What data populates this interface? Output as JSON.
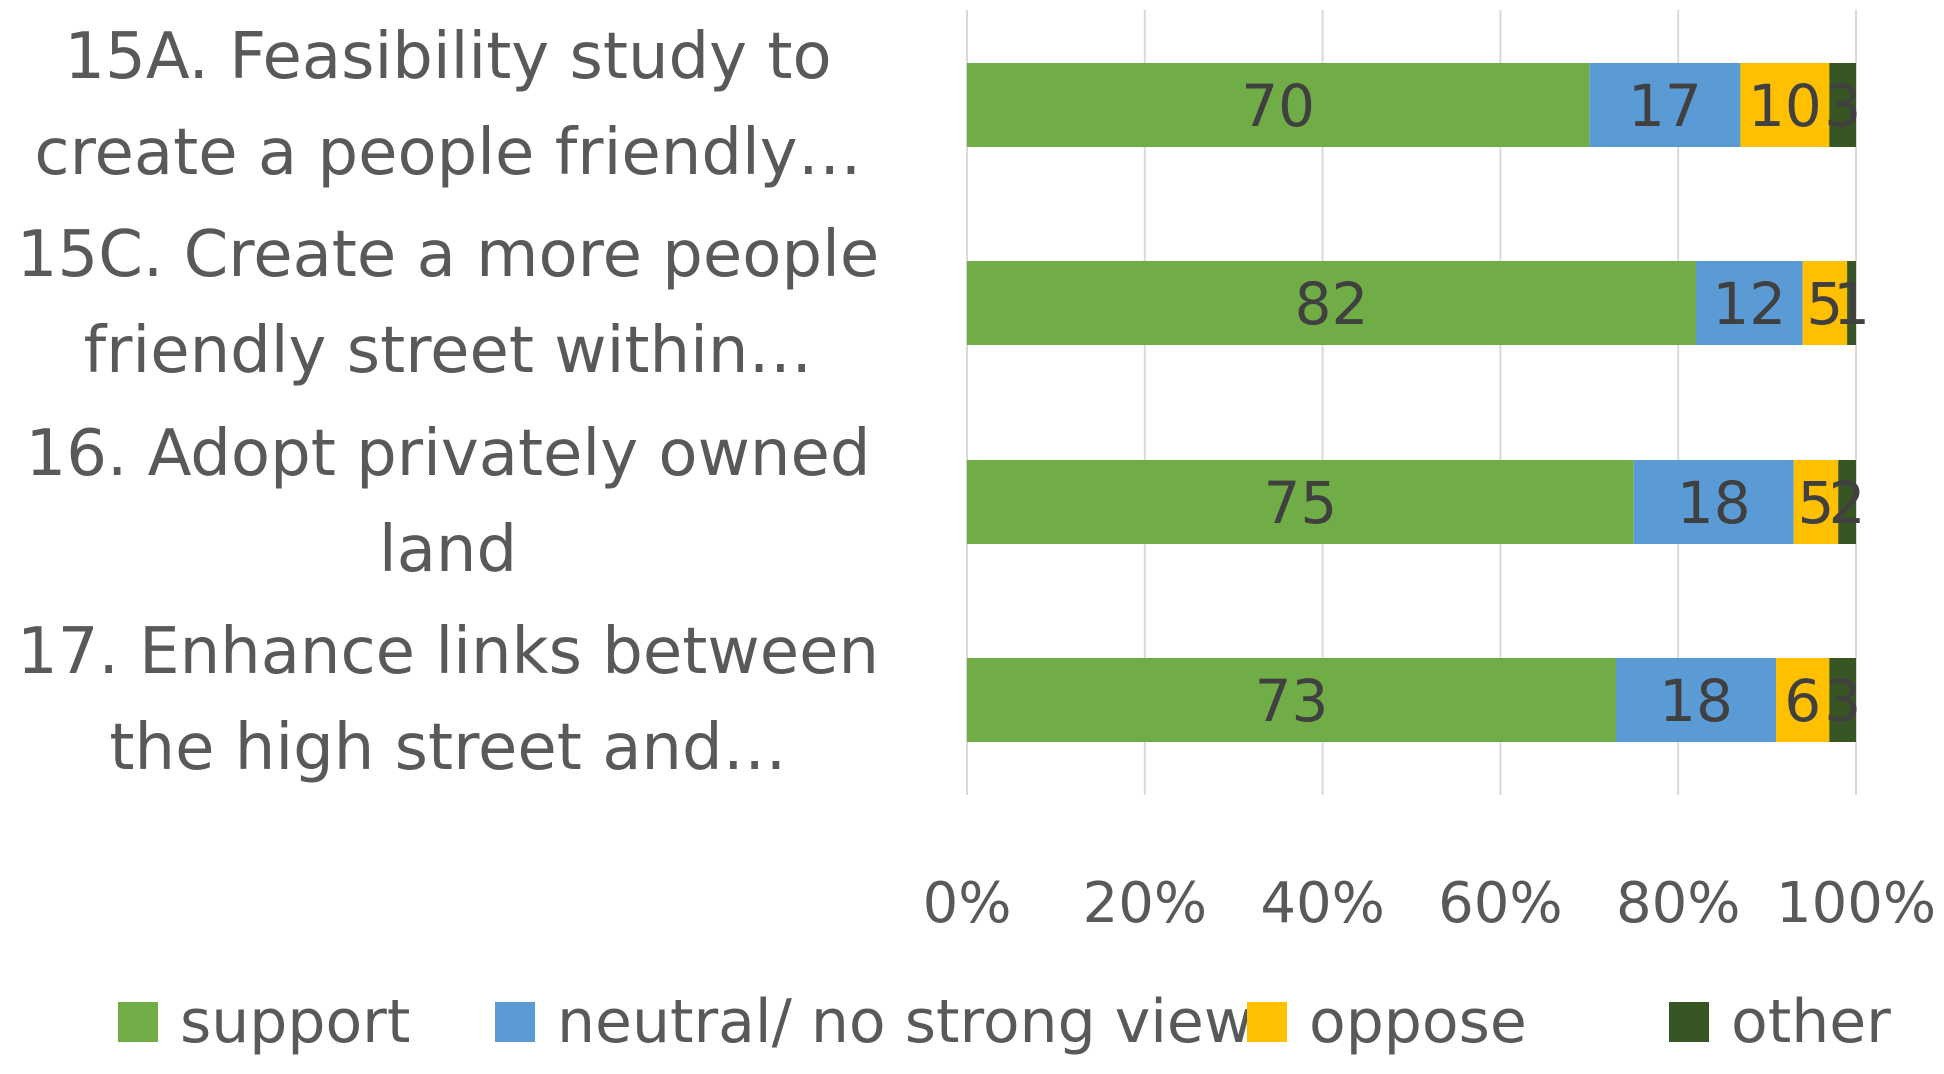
{
  "chart_data": {
    "type": "bar",
    "orientation": "horizontal",
    "stacked": "percent",
    "categories": [
      [
        "15A. Feasibility study to",
        "create a people friendly…"
      ],
      [
        "15C. Create a more people",
        "friendly street within…"
      ],
      [
        "16. Adopt privately owned",
        "land"
      ],
      [
        "17. Enhance links between",
        "the high street and…"
      ]
    ],
    "series": [
      {
        "name": "support",
        "color": "#70ad47",
        "values": [
          70,
          82,
          75,
          73
        ]
      },
      {
        "name": "neutral/ no strong view",
        "color": "#5b9bd5",
        "values": [
          17,
          12,
          18,
          18
        ]
      },
      {
        "name": "oppose",
        "color": "#ffc000",
        "values": [
          10,
          5,
          5,
          6
        ]
      },
      {
        "name": "other",
        "color": "#375623",
        "values": [
          3,
          1,
          2,
          3
        ]
      }
    ],
    "xlim": [
      0,
      100
    ],
    "x_ticks": [
      "0%",
      "20%",
      "40%",
      "60%",
      "80%",
      "100%"
    ],
    "grid": true,
    "legend_position": "bottom",
    "data_labels": true
  }
}
